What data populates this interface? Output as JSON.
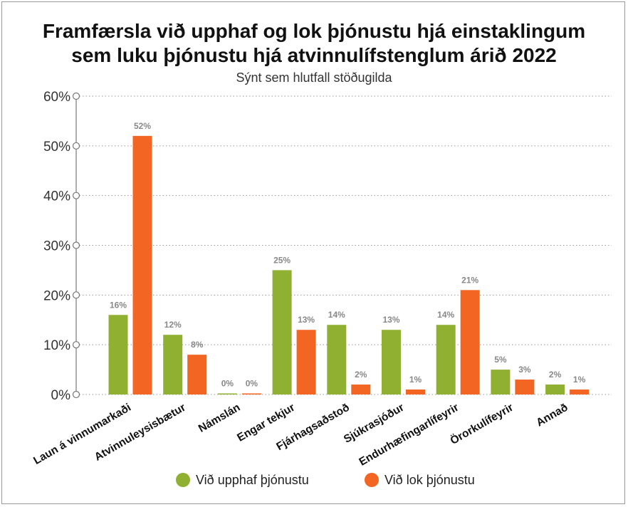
{
  "chart_data": {
    "type": "bar",
    "title_line1": "Framfærsla við upphaf og lok þjónustu hjá einstaklingum",
    "title_line2": "sem luku þjónustu hjá atvinnulífstenglum árið 2022",
    "subtitle": "Sýnt sem hlutfall stöðugilda",
    "categories": [
      "Laun á vinnumarkaði",
      "Atvinnuleysisbætur",
      "Námslán",
      "Engar tekjur",
      "Fjárhagsaðstoð",
      "Sjúkrasjóður",
      "Endurhæfingarlífeyrir",
      "Örorkulífeyrir",
      "Annað"
    ],
    "series": [
      {
        "name": "Við upphaf þjónustu",
        "color": "#8fb030",
        "values": [
          16,
          12,
          0,
          25,
          14,
          13,
          14,
          5,
          2
        ],
        "labels": [
          "16%",
          "12%",
          "0%",
          "25%",
          "14%",
          "13%",
          "14%",
          "5%",
          "2%"
        ]
      },
      {
        "name": "Við lok þjónustu",
        "color": "#f26522",
        "values": [
          52,
          8,
          0,
          13,
          2,
          1,
          21,
          3,
          1
        ],
        "labels": [
          "52%",
          "8%",
          "0%",
          "13%",
          "2%",
          "1%",
          "21%",
          "3%",
          "1%"
        ]
      }
    ],
    "yticks": [
      "0%",
      "10%",
      "20%",
      "30%",
      "40%",
      "50%",
      "60%"
    ],
    "ylim": [
      0,
      60
    ],
    "grid": true,
    "legend_position": "bottom-center"
  }
}
